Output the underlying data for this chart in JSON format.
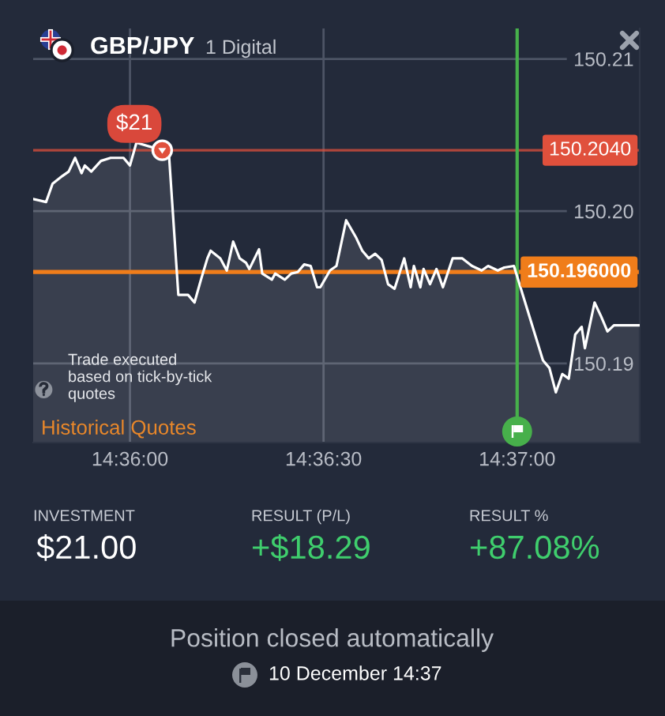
{
  "chart_data": {
    "type": "area",
    "title": "GBP/JPY",
    "subtitle": "1 Digital",
    "x": [
      14.595833,
      14.596389,
      14.596667,
      14.597083,
      14.597361,
      14.597639,
      14.597917,
      14.598056,
      14.598333,
      14.59875,
      14.599167,
      14.599722,
      14.6,
      14.600278,
      14.601389,
      14.601667,
      14.602083,
      14.6025,
      14.602778,
      14.603056,
      14.603333,
      14.603472,
      14.603889,
      14.604167,
      14.604444,
      14.604722,
      14.605,
      14.605139,
      14.605556,
      14.605694,
      14.606111,
      14.60625,
      14.606667,
      14.606944,
      14.607222,
      14.6075,
      14.607778,
      14.608056,
      14.608194,
      14.608611,
      14.608889,
      14.609306,
      14.609722,
      14.61,
      14.610278,
      14.610556,
      14.610833,
      14.611111,
      14.611389,
      14.611806,
      14.612083,
      14.612222,
      14.6125,
      14.612639,
      14.612917,
      14.613194,
      14.613472,
      14.613889,
      14.614306,
      14.614722,
      14.615139,
      14.615417,
      14.615833,
      14.616111,
      14.616528,
      14.617778,
      14.618056,
      14.618333,
      14.618611,
      14.618889,
      14.619167,
      14.619444,
      14.619583,
      14.62,
      14.620278,
      14.620556,
      14.620833,
      14.621944
    ],
    "series": [
      {
        "color": "#ffffff",
        "values": [
          150.2008,
          150.2006,
          150.2018,
          150.2023,
          150.2026,
          150.2035,
          150.2025,
          150.203,
          150.2026,
          150.2033,
          150.2035,
          150.2035,
          150.203,
          150.2045,
          150.204,
          150.204,
          150.1945,
          150.1945,
          150.194,
          150.1955,
          150.1969,
          150.1974,
          150.1969,
          150.1961,
          150.198,
          150.1969,
          150.1966,
          150.1962,
          150.1975,
          150.1959,
          150.1955,
          150.1959,
          150.1955,
          150.1959,
          150.196,
          150.1965,
          150.1964,
          150.195,
          150.195,
          150.1961,
          150.1964,
          150.1994,
          150.1983,
          150.1974,
          150.1969,
          150.1972,
          150.1968,
          150.1952,
          150.1949,
          150.1969,
          150.195,
          150.1964,
          150.195,
          150.1962,
          150.1952,
          150.1962,
          150.195,
          150.1969,
          150.1969,
          150.1964,
          150.1961,
          150.1964,
          150.1961,
          150.1963,
          150.1964,
          150.1902,
          150.1897,
          150.1881,
          150.1893,
          150.189,
          150.1919,
          150.1924,
          150.191,
          150.194,
          150.1931,
          150.1921,
          150.1925,
          150.1925
        ]
      }
    ],
    "xlim": [
      14.595833,
      14.621944
    ],
    "xticks": [
      {
        "value": 14.6,
        "label": "14:36:00"
      },
      {
        "value": 14.608333,
        "label": "14:36:30"
      },
      {
        "value": 14.616667,
        "label": "14:37:00"
      }
    ],
    "ylim": [
      150.1848,
      150.212
    ],
    "yticks": [
      150.19,
      {
        "value": 150.2,
        "label": "150.20"
      },
      150.21
    ],
    "grid": true,
    "ref_lines": [
      {
        "axis": "y",
        "value": 150.204,
        "label": "150.2040",
        "color": "#e0503c"
      },
      {
        "axis": "y",
        "value": 150.196,
        "label": "150.196000",
        "color": "#f07d1a"
      },
      {
        "axis": "x",
        "value": 14.616667,
        "color": "#47b04b"
      }
    ],
    "annotations": [
      {
        "text": "$21",
        "x": 14.601389,
        "y": 150.204
      },
      "Trade executed\nbased on tick-by-tick\nquotes",
      "Historical Quotes",
      "INVESTMENT",
      "$21.00",
      "RESULT (P/L)",
      "+$18.29",
      "RESULT %",
      "+87.08%",
      "Position closed automatically",
      "10 December 14:37"
    ]
  }
}
